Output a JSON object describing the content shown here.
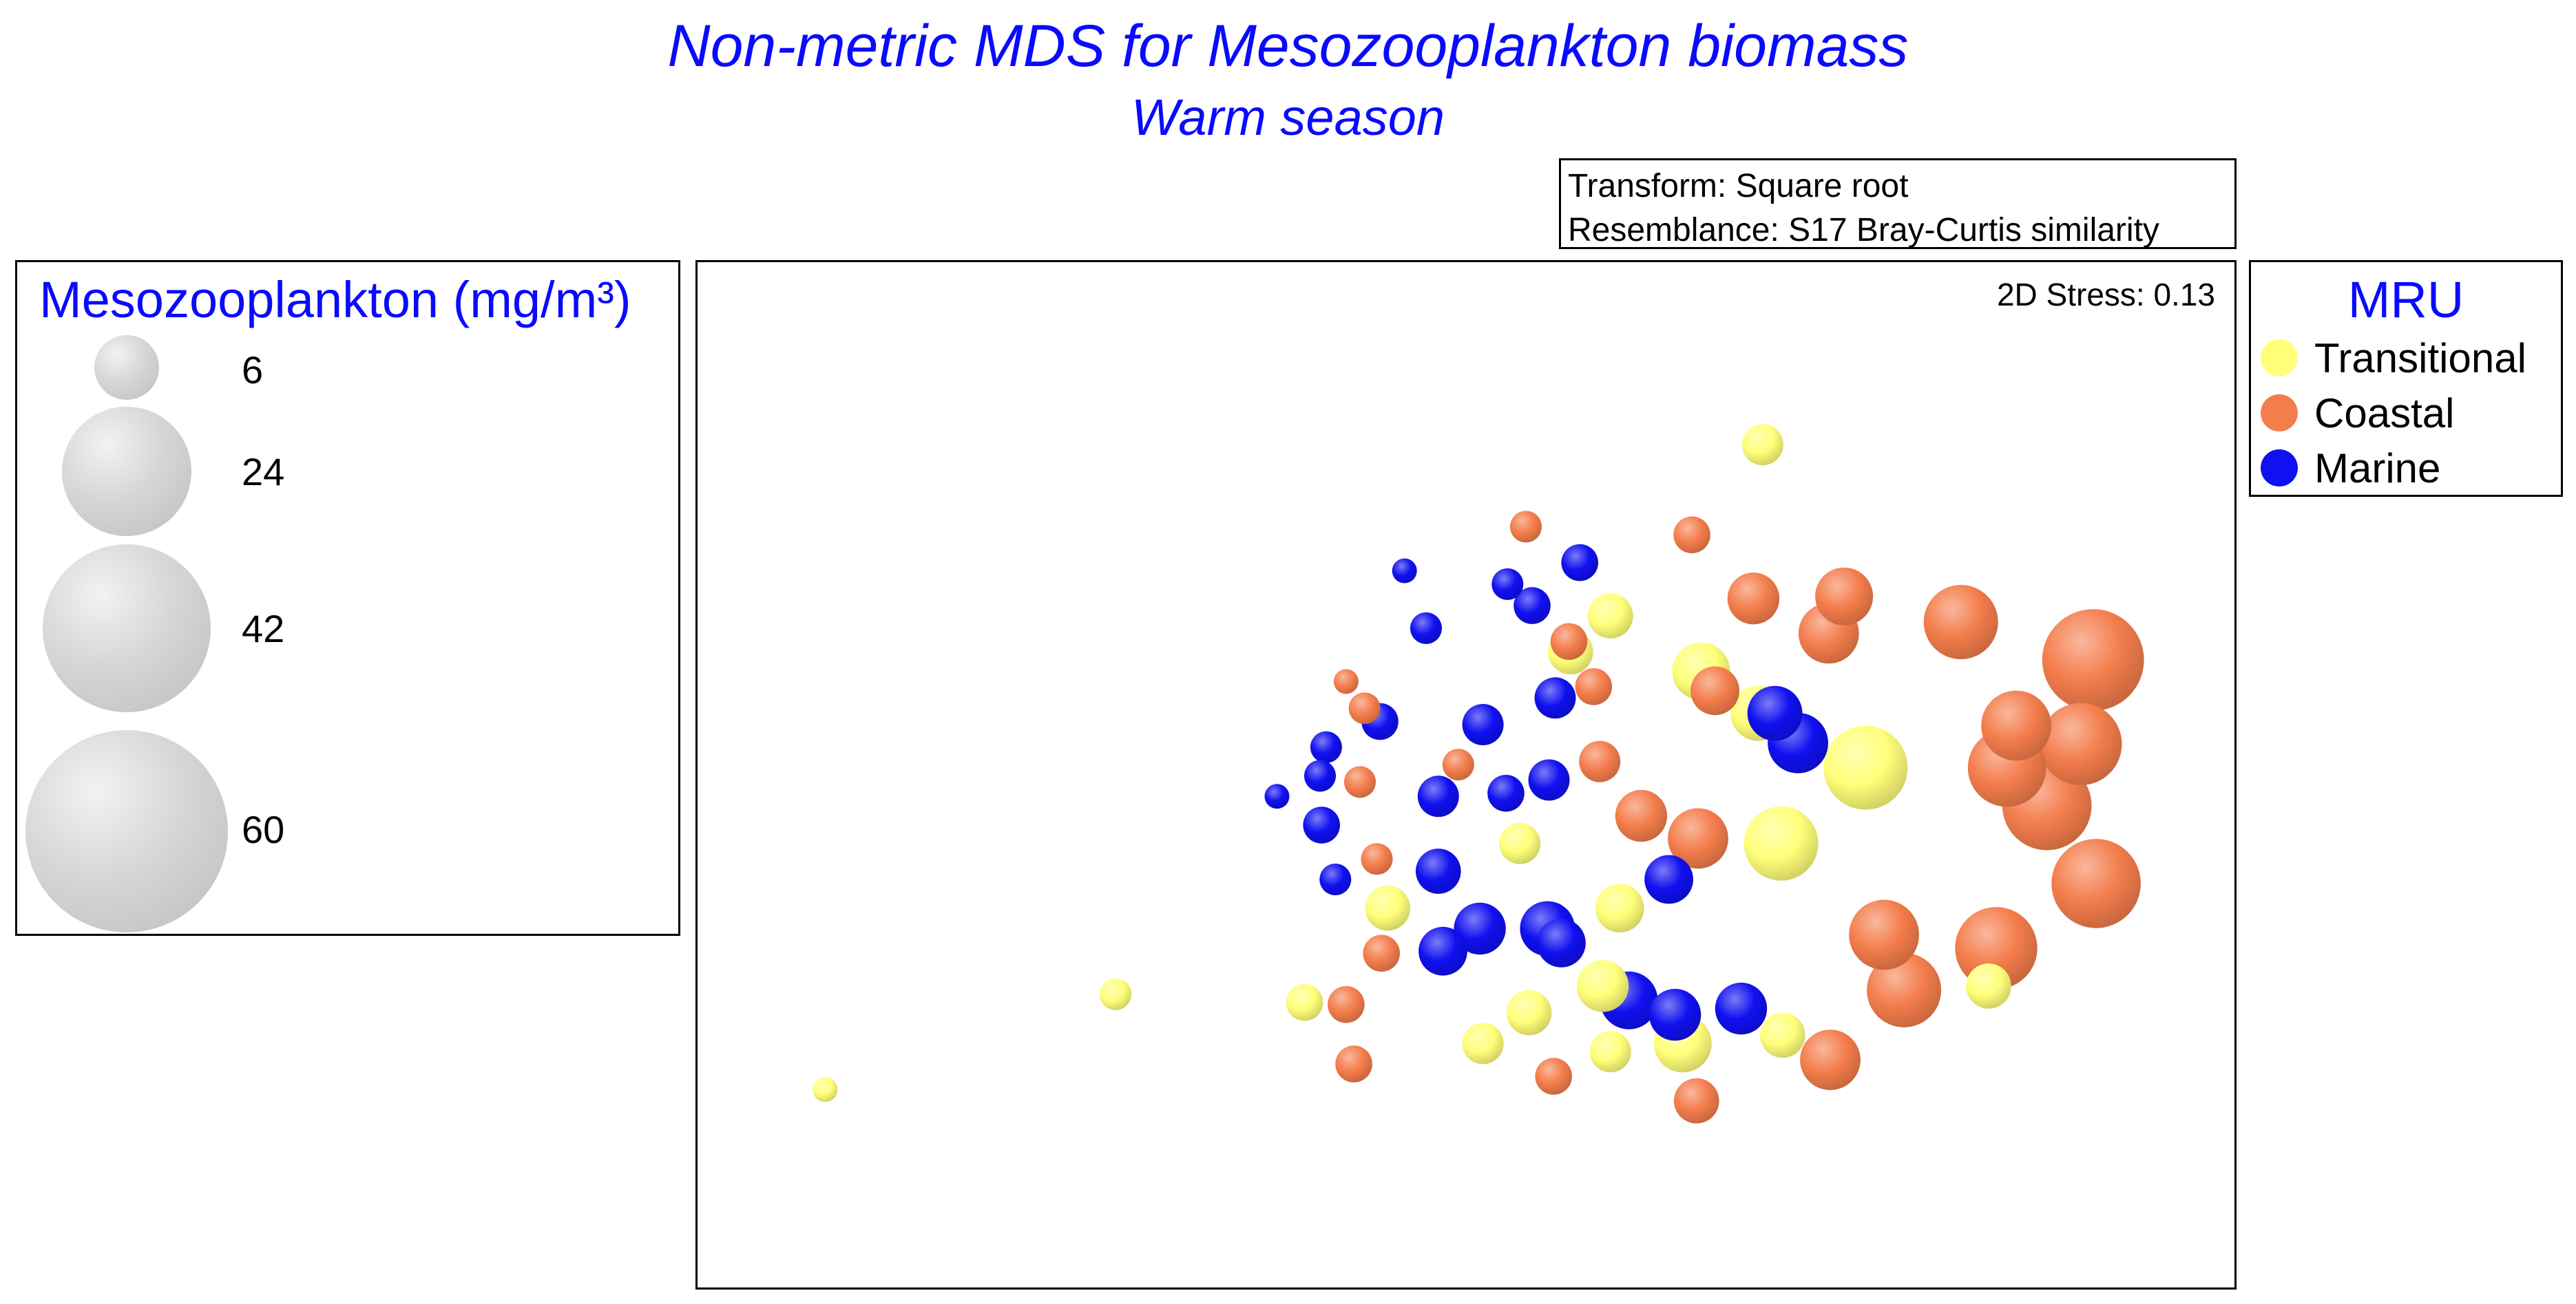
{
  "title": "Non-metric MDS for Mesozooplankton biomass",
  "subtitle": "Warm season",
  "info": {
    "transform": "Transform: Square root",
    "resemblance": "Resemblance: S17 Bray-Curtis similarity"
  },
  "size_legend": {
    "title": "Mesozooplankton (mg/m³)",
    "items": [
      {
        "label": "6",
        "value": 6
      },
      {
        "label": "24",
        "value": 24
      },
      {
        "label": "42",
        "value": 42
      },
      {
        "label": "60",
        "value": 60
      }
    ]
  },
  "stress": "2D Stress: 0.13",
  "mru_legend": {
    "title": "MRU",
    "items": [
      {
        "label": "Transitional",
        "color": "#ffff7a"
      },
      {
        "label": "Coastal",
        "color": "#f47d4c"
      },
      {
        "label": "Marine",
        "color": "#1010f0"
      }
    ]
  },
  "chart_data": {
    "type": "scatter",
    "title": "Non-metric MDS for Mesozooplankton biomass",
    "subtitle": "Warm season",
    "xlabel": "",
    "ylabel": "",
    "xlim": [
      0,
      1
    ],
    "ylim": [
      0,
      1
    ],
    "axes_shown": false,
    "size_variable": "Mesozooplankton (mg/m³)",
    "colors": {
      "Transitional": "#ffff7a",
      "Coastal": "#f47d4c",
      "Marine": "#1010f0"
    },
    "series": [
      {
        "name": "Transitional",
        "points": [
          {
            "x": 0.693,
            "y": 0.822,
            "size": 4
          },
          {
            "x": 0.272,
            "y": 0.286,
            "size": 2
          },
          {
            "x": 0.083,
            "y": 0.193,
            "size": 1
          },
          {
            "x": 0.594,
            "y": 0.655,
            "size": 5
          },
          {
            "x": 0.653,
            "y": 0.601,
            "size": 9
          },
          {
            "x": 0.69,
            "y": 0.56,
            "size": 8
          },
          {
            "x": 0.76,
            "y": 0.507,
            "size": 21
          },
          {
            "x": 0.705,
            "y": 0.433,
            "size": 16
          },
          {
            "x": 0.535,
            "y": 0.433,
            "size": 4
          },
          {
            "x": 0.449,
            "y": 0.37,
            "size": 5
          },
          {
            "x": 0.6,
            "y": 0.37,
            "size": 6
          },
          {
            "x": 0.589,
            "y": 0.294,
            "size": 7
          },
          {
            "x": 0.541,
            "y": 0.268,
            "size": 5
          },
          {
            "x": 0.511,
            "y": 0.238,
            "size": 4
          },
          {
            "x": 0.594,
            "y": 0.23,
            "size": 4
          },
          {
            "x": 0.641,
            "y": 0.238,
            "size": 9
          },
          {
            "x": 0.706,
            "y": 0.246,
            "size": 5
          },
          {
            "x": 0.395,
            "y": 0.278,
            "size": 3
          },
          {
            "x": 0.568,
            "y": 0.62,
            "size": 5
          },
          {
            "x": 0.84,
            "y": 0.294,
            "size": 5
          }
        ]
      },
      {
        "name": "Coastal",
        "points": [
          {
            "x": 0.539,
            "y": 0.742,
            "size": 2
          },
          {
            "x": 0.647,
            "y": 0.734,
            "size": 3
          },
          {
            "x": 0.687,
            "y": 0.672,
            "size": 7
          },
          {
            "x": 0.746,
            "y": 0.674,
            "size": 9
          },
          {
            "x": 0.736,
            "y": 0.638,
            "size": 10
          },
          {
            "x": 0.822,
            "y": 0.649,
            "size": 16
          },
          {
            "x": 0.908,
            "y": 0.612,
            "size": 32
          },
          {
            "x": 0.858,
            "y": 0.548,
            "size": 14
          },
          {
            "x": 0.852,
            "y": 0.507,
            "size": 18
          },
          {
            "x": 0.878,
            "y": 0.47,
            "size": 24
          },
          {
            "x": 0.91,
            "y": 0.394,
            "size": 24
          },
          {
            "x": 0.845,
            "y": 0.331,
            "size": 20
          },
          {
            "x": 0.785,
            "y": 0.29,
            "size": 16
          },
          {
            "x": 0.737,
            "y": 0.222,
            "size": 10
          },
          {
            "x": 0.65,
            "y": 0.182,
            "size": 5
          },
          {
            "x": 0.662,
            "y": 0.582,
            "size": 6
          },
          {
            "x": 0.651,
            "y": 0.438,
            "size": 10
          },
          {
            "x": 0.614,
            "y": 0.46,
            "size": 7
          },
          {
            "x": 0.587,
            "y": 0.513,
            "size": 4
          },
          {
            "x": 0.583,
            "y": 0.586,
            "size": 3
          },
          {
            "x": 0.422,
            "y": 0.591,
            "size": 1
          },
          {
            "x": 0.434,
            "y": 0.565,
            "size": 2
          },
          {
            "x": 0.495,
            "y": 0.51,
            "size": 2
          },
          {
            "x": 0.431,
            "y": 0.493,
            "size": 2
          },
          {
            "x": 0.442,
            "y": 0.418,
            "size": 2
          },
          {
            "x": 0.445,
            "y": 0.326,
            "size": 3
          },
          {
            "x": 0.422,
            "y": 0.276,
            "size": 3
          },
          {
            "x": 0.427,
            "y": 0.218,
            "size": 3
          },
          {
            "x": 0.557,
            "y": 0.206,
            "size": 3
          },
          {
            "x": 0.567,
            "y": 0.63,
            "size": 3
          },
          {
            "x": 0.772,
            "y": 0.344,
            "size": 14
          },
          {
            "x": 0.9,
            "y": 0.53,
            "size": 20
          }
        ]
      },
      {
        "name": "Marine",
        "points": [
          {
            "x": 0.46,
            "y": 0.699,
            "size": 1
          },
          {
            "x": 0.474,
            "y": 0.643,
            "size": 2
          },
          {
            "x": 0.527,
            "y": 0.686,
            "size": 2
          },
          {
            "x": 0.543,
            "y": 0.665,
            "size": 3
          },
          {
            "x": 0.574,
            "y": 0.707,
            "size": 3
          },
          {
            "x": 0.558,
            "y": 0.575,
            "size": 4
          },
          {
            "x": 0.511,
            "y": 0.549,
            "size": 4
          },
          {
            "x": 0.444,
            "y": 0.552,
            "size": 3
          },
          {
            "x": 0.409,
            "y": 0.527,
            "size": 2
          },
          {
            "x": 0.405,
            "y": 0.499,
            "size": 2
          },
          {
            "x": 0.377,
            "y": 0.479,
            "size": 1
          },
          {
            "x": 0.406,
            "y": 0.451,
            "size": 3
          },
          {
            "x": 0.415,
            "y": 0.398,
            "size": 2
          },
          {
            "x": 0.482,
            "y": 0.479,
            "size": 4
          },
          {
            "x": 0.526,
            "y": 0.482,
            "size": 3
          },
          {
            "x": 0.554,
            "y": 0.495,
            "size": 4
          },
          {
            "x": 0.482,
            "y": 0.406,
            "size": 5
          },
          {
            "x": 0.509,
            "y": 0.35,
            "size": 7
          },
          {
            "x": 0.553,
            "y": 0.35,
            "size": 8
          },
          {
            "x": 0.485,
            "y": 0.328,
            "size": 6
          },
          {
            "x": 0.562,
            "y": 0.336,
            "size": 6
          },
          {
            "x": 0.632,
            "y": 0.398,
            "size": 6
          },
          {
            "x": 0.636,
            "y": 0.266,
            "size": 7
          },
          {
            "x": 0.606,
            "y": 0.28,
            "size": 9
          },
          {
            "x": 0.679,
            "y": 0.272,
            "size": 7
          },
          {
            "x": 0.701,
            "y": 0.56,
            "size": 8
          },
          {
            "x": 0.716,
            "y": 0.531,
            "size": 10
          }
        ]
      }
    ]
  }
}
